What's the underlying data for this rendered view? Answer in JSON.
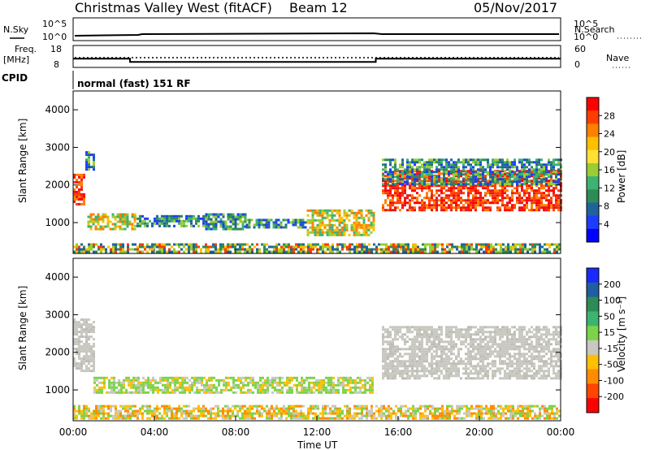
{
  "header": {
    "title": "Christmas Valley West (fitACF)",
    "beam": "Beam 12",
    "date": "05/Nov/2017"
  },
  "top_panels": {
    "nsky_label": "N.Sky",
    "nsearch_label": "N.Search",
    "freq_label_line1": "Freq.",
    "freq_label_line2": "[MHz]",
    "nave_label": "Nave",
    "cpid_label": "CPID",
    "cpid_value": "normal (fast) 151 RF",
    "noise_ticks_left": [
      "10^5",
      "10^0"
    ],
    "noise_ticks_right": [
      "10^5",
      "10^0"
    ],
    "freq_ticks_left": [
      "18",
      "8"
    ],
    "freq_ticks_right": [
      "60",
      "0"
    ]
  },
  "colorbars": {
    "power": {
      "label": "Power [dB]",
      "ticks": [
        "28",
        "24",
        "20",
        "16",
        "12",
        "8",
        "4"
      ],
      "colors": [
        "#ff0000",
        "#ff3c00",
        "#ff7f00",
        "#ffbf00",
        "#ffe135",
        "#9acd32",
        "#3cb371",
        "#2e8b57",
        "#20639b",
        "#1e3cff",
        "#0000ff"
      ]
    },
    "velocity": {
      "label": "Velocity [m s⁻¹]",
      "ticks": [
        "200",
        "100",
        "50",
        "15",
        "-15",
        "-50",
        "-100",
        "-200"
      ],
      "colors": [
        "#1a2aff",
        "#1f5fa0",
        "#2e8b57",
        "#3cb371",
        "#7cd34a",
        "#c8c8c0",
        "#ffbf00",
        "#ff8c00",
        "#ff4500",
        "#ff0000"
      ]
    }
  },
  "axes": {
    "ylabel": "Slant Range [km]",
    "xlabel": "Time UT",
    "xticks": [
      "00:00",
      "04:00",
      "08:00",
      "12:00",
      "16:00",
      "20:00",
      "00:00"
    ],
    "yticks": [
      "1000",
      "2000",
      "3000",
      "4000"
    ]
  },
  "chart_data": {
    "type": "heatmap",
    "x_range_hours": [
      0,
      24
    ],
    "y_range_km": [
      180,
      4500
    ],
    "frequency_mhz_steps": [
      {
        "start": 0,
        "end": 2.8,
        "value": 12.0
      },
      {
        "start": 2.8,
        "end": 14.9,
        "value": 10.5
      },
      {
        "start": 14.9,
        "end": 24,
        "value": 12.0
      }
    ],
    "power_regions": [
      {
        "t0": 0.0,
        "t1": 0.6,
        "r0": 1500,
        "r1": 2300,
        "level": "high"
      },
      {
        "t0": 0.6,
        "t1": 1.0,
        "r0": 2400,
        "r1": 2900,
        "level": "low"
      },
      {
        "t0": 0.7,
        "t1": 3.0,
        "r0": 850,
        "r1": 1250,
        "level": "medium"
      },
      {
        "t0": 3.0,
        "t1": 6.5,
        "r0": 900,
        "r1": 1200,
        "level": "low"
      },
      {
        "t0": 6.5,
        "t1": 8.5,
        "r0": 800,
        "r1": 1250,
        "level": "low"
      },
      {
        "t0": 8.5,
        "t1": 11.5,
        "r0": 900,
        "r1": 1100,
        "level": "low"
      },
      {
        "t0": 11.5,
        "t1": 14.8,
        "r0": 700,
        "r1": 1350,
        "level": "medium"
      },
      {
        "t0": 0.0,
        "t1": 24.0,
        "r0": 250,
        "r1": 450,
        "level": "mixed"
      },
      {
        "t0": 15.2,
        "t1": 24.0,
        "r0": 1300,
        "r1": 2400,
        "level": "high"
      },
      {
        "t0": 15.2,
        "t1": 24.0,
        "r0": 2000,
        "r1": 2700,
        "level": "low"
      }
    ],
    "velocity_regions": [
      {
        "t0": 0.0,
        "t1": 1.0,
        "r0": 1500,
        "r1": 2900,
        "level": "ground"
      },
      {
        "t0": 1.0,
        "t1": 14.8,
        "r0": 900,
        "r1": 1350,
        "level": "mixed"
      },
      {
        "t0": 0.0,
        "t1": 24.0,
        "r0": 250,
        "r1": 600,
        "level": "slow"
      },
      {
        "t0": 15.2,
        "t1": 24.0,
        "r0": 1300,
        "r1": 2700,
        "level": "ground"
      }
    ]
  }
}
